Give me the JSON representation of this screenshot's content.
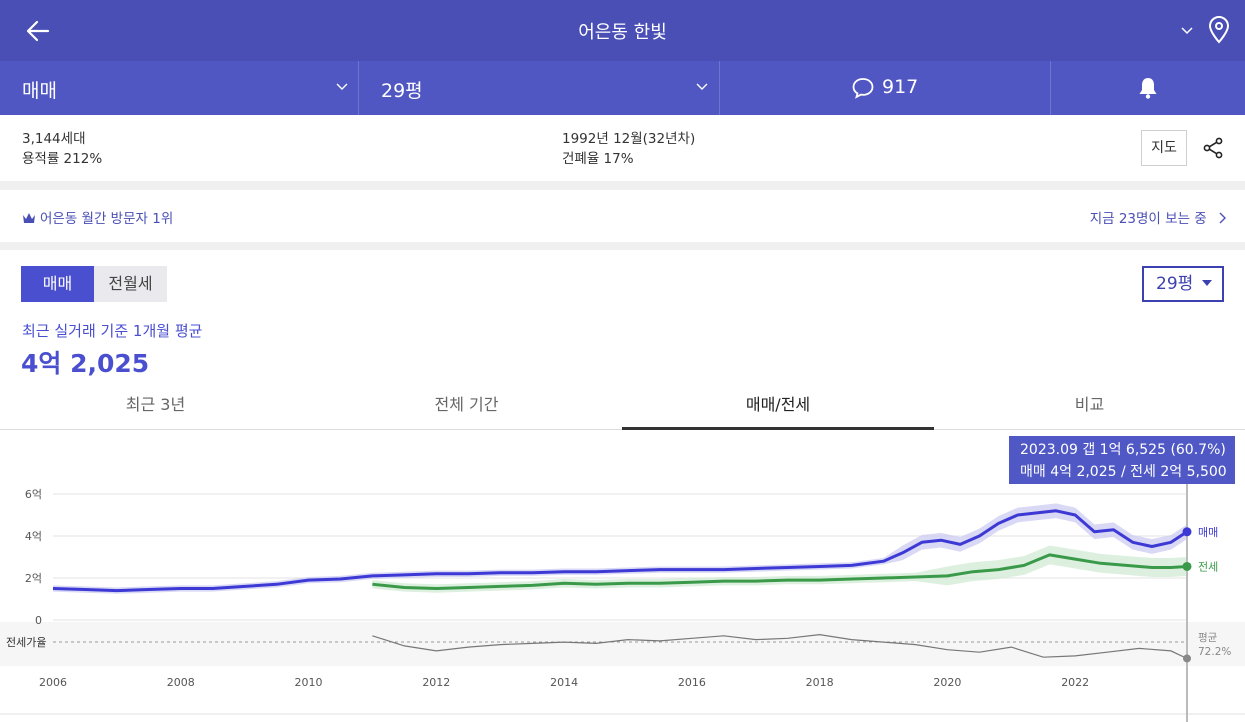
{
  "header": {
    "title": "어은동 한빛"
  },
  "subbar": {
    "deal_type": "매매",
    "size": "29평",
    "comments": "917"
  },
  "info": {
    "households": "3,144세대",
    "floor_area_ratio": "용적률 212%",
    "built": "1992년 12월(32년차)",
    "building_coverage": "건폐율 17%",
    "map_label": "지도"
  },
  "visit": {
    "rank": "어은동 월간 방문자 1위",
    "viewers": "지금 23명이 보는 중"
  },
  "toggle": {
    "sale": "매매",
    "rent": "전월세"
  },
  "size_select": "29평",
  "average": {
    "label": "최근 실거래 기준 1개월 평균",
    "value": "4억 2,025"
  },
  "tabs": [
    "최근 3년",
    "전체 기간",
    "매매/전세",
    "비교"
  ],
  "tooltip": {
    "line1": "2023.09  갭 1억 6,525 (60.7%)",
    "line2": "매매 4억 2,025 / 전세 2억 5,500"
  },
  "colors": {
    "header": "#4a4fb6",
    "sale": "#3d39d4",
    "jeonse": "#3a9a4a",
    "ratio": "#777777",
    "sale_band": "#c9c9f2",
    "jeonse_band": "#cfe9d2"
  },
  "chart_data": {
    "type": "line",
    "x_unit": "year",
    "xlim": [
      2006,
      2023.75
    ],
    "x_ticks": [
      "2006",
      "2008",
      "2010",
      "2012",
      "2014",
      "2016",
      "2018",
      "2020",
      "2022"
    ],
    "y_unit": "억",
    "ylim": [
      0,
      6
    ],
    "y_ticks": [
      "6억",
      "4억",
      "2억",
      "0"
    ],
    "ratio_label": "전세가율",
    "ratio_end_label": "평균",
    "ratio_end_value": "72.2%",
    "series": [
      {
        "name": "매매",
        "x": [
          2006,
          2006.5,
          2007,
          2007.5,
          2008,
          2008.5,
          2009,
          2009.5,
          2010,
          2010.5,
          2011,
          2011.5,
          2012,
          2012.5,
          2013,
          2013.5,
          2014,
          2014.5,
          2015,
          2015.5,
          2016,
          2016.5,
          2017,
          2017.5,
          2018,
          2018.5,
          2019,
          2019.3,
          2019.6,
          2019.9,
          2020.2,
          2020.5,
          2020.8,
          2021.1,
          2021.4,
          2021.7,
          2022.0,
          2022.3,
          2022.6,
          2022.9,
          2023.2,
          2023.5,
          2023.75
        ],
        "values": [
          1.5,
          1.45,
          1.4,
          1.45,
          1.5,
          1.5,
          1.6,
          1.7,
          1.9,
          1.95,
          2.1,
          2.15,
          2.2,
          2.2,
          2.25,
          2.25,
          2.3,
          2.3,
          2.35,
          2.4,
          2.4,
          2.4,
          2.45,
          2.5,
          2.55,
          2.6,
          2.8,
          3.2,
          3.7,
          3.8,
          3.6,
          4.0,
          4.6,
          5.0,
          5.1,
          5.2,
          5.0,
          4.2,
          4.3,
          3.7,
          3.5,
          3.7,
          4.2
        ]
      },
      {
        "name": "전세",
        "x": [
          2011,
          2011.5,
          2012,
          2012.5,
          2013,
          2013.5,
          2014,
          2014.5,
          2015,
          2015.5,
          2016,
          2016.5,
          2017,
          2017.5,
          2018,
          2018.5,
          2019,
          2019.5,
          2020,
          2020.4,
          2020.8,
          2021.2,
          2021.6,
          2022.0,
          2022.4,
          2022.8,
          2023.2,
          2023.5,
          2023.75
        ],
        "values": [
          1.7,
          1.55,
          1.5,
          1.55,
          1.6,
          1.65,
          1.75,
          1.7,
          1.75,
          1.75,
          1.8,
          1.85,
          1.85,
          1.9,
          1.9,
          1.95,
          2.0,
          2.05,
          2.1,
          2.3,
          2.4,
          2.6,
          3.1,
          2.9,
          2.7,
          2.6,
          2.5,
          2.5,
          2.55
        ]
      },
      {
        "name": "전세가율",
        "x": [
          2011,
          2011.5,
          2012,
          2012.5,
          2013,
          2013.5,
          2014,
          2014.5,
          2015,
          2015.5,
          2016,
          2016.5,
          2017,
          2017.5,
          2018,
          2018.5,
          2019,
          2019.5,
          2020,
          2020.5,
          2021,
          2021.5,
          2022,
          2022.5,
          2023,
          2023.5,
          2023.75
        ],
        "values": [
          79,
          71,
          67,
          70,
          72,
          73,
          74,
          73,
          76,
          75,
          77,
          79,
          76,
          77,
          80,
          76,
          74,
          72,
          68,
          66,
          70,
          62,
          63,
          66,
          69,
          67,
          61
        ]
      }
    ]
  }
}
